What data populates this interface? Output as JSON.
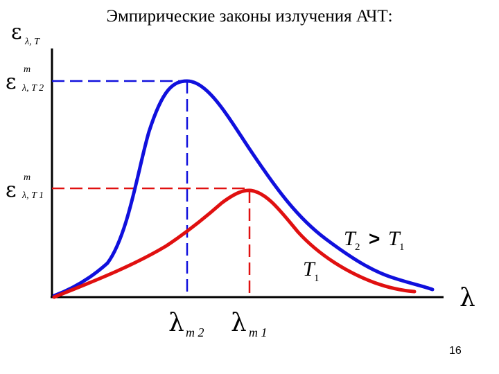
{
  "title": "Эмпирические законы излучения АЧТ:",
  "page_number": "16",
  "axis": {
    "y_symbol": "ε",
    "y_subscript": "λ, T",
    "x_symbol": "λ"
  },
  "levels": {
    "peak_high": {
      "symbol": "ε",
      "superscript": "m",
      "subscript": "λ, T 2"
    },
    "peak_low": {
      "symbol": "ε",
      "superscript": "m",
      "subscript": "λ, T 1"
    }
  },
  "wavelengths": {
    "lambda_m2": {
      "symbol": "λ",
      "subscript": "m 2"
    },
    "lambda_m1": {
      "symbol": "λ",
      "subscript": "m 1"
    }
  },
  "curve_labels": {
    "hot": {
      "t": "T",
      "t_sub": "2",
      "op": ">",
      "t2": "T",
      "t2_sub": "1"
    },
    "cold": {
      "t": "T",
      "t_sub": "1"
    }
  },
  "colors": {
    "curve_t2": "#1010dd",
    "curve_t1": "#e01010",
    "axes": "#000000"
  }
}
